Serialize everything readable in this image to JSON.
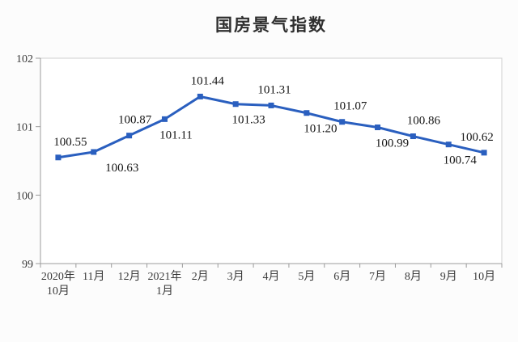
{
  "chart_data": {
    "type": "line",
    "title": "国房景气指数",
    "categories": [
      [
        "2020年",
        "10月"
      ],
      [
        "11月"
      ],
      [
        "12月"
      ],
      [
        "2021年",
        "1月"
      ],
      [
        "2月"
      ],
      [
        "3月"
      ],
      [
        "4月"
      ],
      [
        "5月"
      ],
      [
        "6月"
      ],
      [
        "7月"
      ],
      [
        "8月"
      ],
      [
        "9月"
      ],
      [
        "10月"
      ]
    ],
    "values": [
      100.55,
      100.63,
      100.87,
      101.11,
      101.44,
      101.33,
      101.31,
      101.2,
      101.07,
      100.99,
      100.86,
      100.74,
      100.62
    ],
    "data_labels": [
      "100.55",
      "100.63",
      "100.87",
      "101.11",
      "101.44",
      "101.33",
      "101.31",
      "101.20",
      "101.07",
      "100.99",
      "100.86",
      "100.74",
      "100.62"
    ],
    "label_layout": [
      {
        "pos": "above",
        "dx": 15
      },
      {
        "pos": "below",
        "dx": 35
      },
      {
        "pos": "above",
        "dx": 7
      },
      {
        "pos": "below",
        "dx": 14
      },
      {
        "pos": "above",
        "dx": 9
      },
      {
        "pos": "below",
        "dx": 16
      },
      {
        "pos": "above",
        "dx": 4
      },
      {
        "pos": "below",
        "dx": 17
      },
      {
        "pos": "above",
        "dx": 10
      },
      {
        "pos": "below",
        "dx": 18
      },
      {
        "pos": "above",
        "dx": 13
      },
      {
        "pos": "below",
        "dx": 14
      },
      {
        "pos": "above",
        "dx": -9
      }
    ],
    "xlabel": "",
    "ylabel": "",
    "ylim": [
      99,
      102
    ],
    "yticks": [
      99,
      100,
      101,
      102
    ],
    "grid": false,
    "legend": "none",
    "line_color": "#2A5FBF",
    "marker": "square",
    "label_color": "#151515",
    "axis_text_color": "#3a3a3a",
    "axis_line_color": "#9b9b9b",
    "plot_border_color": "#cfcfcf",
    "plot_fill": "#ffffff"
  }
}
